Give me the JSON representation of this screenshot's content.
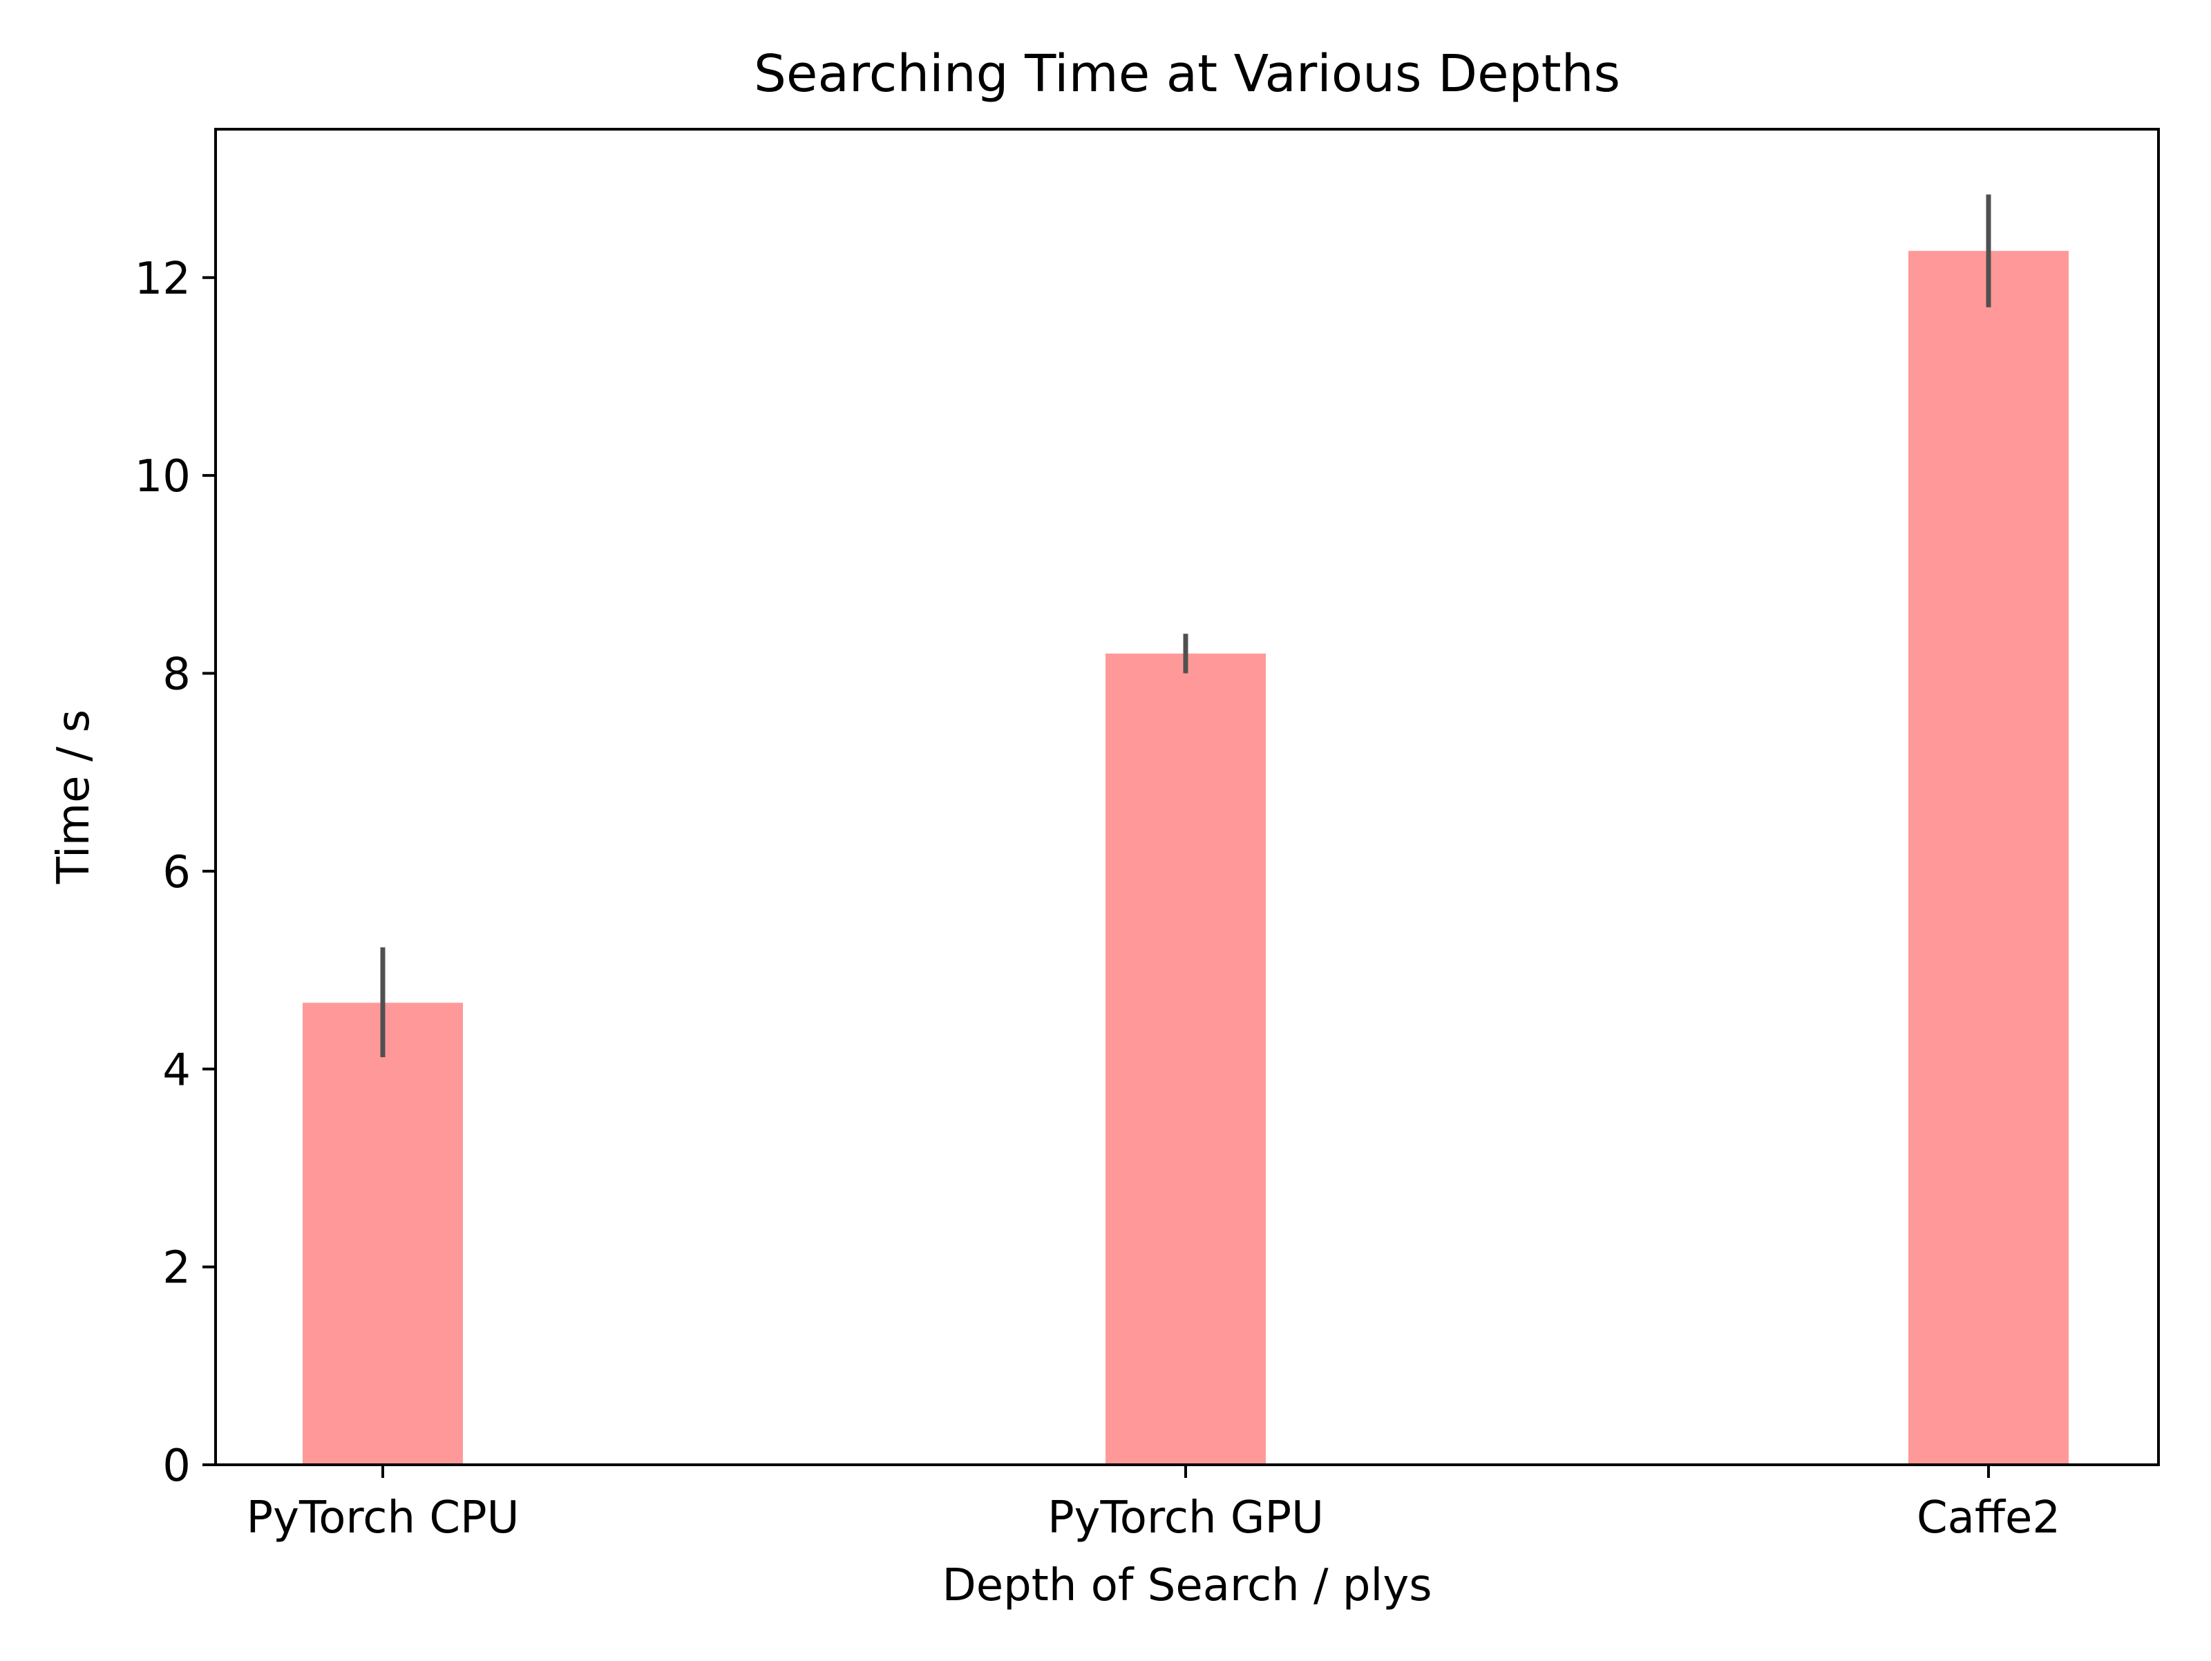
{
  "chart_data": {
    "type": "bar",
    "title": "Searching Time at Various Depths",
    "xlabel": "Depth of Search / plys",
    "ylabel": "Time / s",
    "categories": [
      "PyTorch CPU",
      "PyTorch GPU",
      "Caffe2"
    ],
    "values": [
      4.67,
      8.2,
      12.27
    ],
    "error_low": [
      4.12,
      8.0,
      11.7
    ],
    "error_high": [
      5.23,
      8.4,
      12.84
    ],
    "ylim": [
      0,
      13.5
    ],
    "yticks": [
      0,
      2,
      4,
      6,
      8,
      10,
      12
    ],
    "grid": false,
    "legend": "none",
    "colors": {
      "bar": "#ff9999",
      "error_bar": "#505050",
      "axis": "#000000"
    }
  }
}
